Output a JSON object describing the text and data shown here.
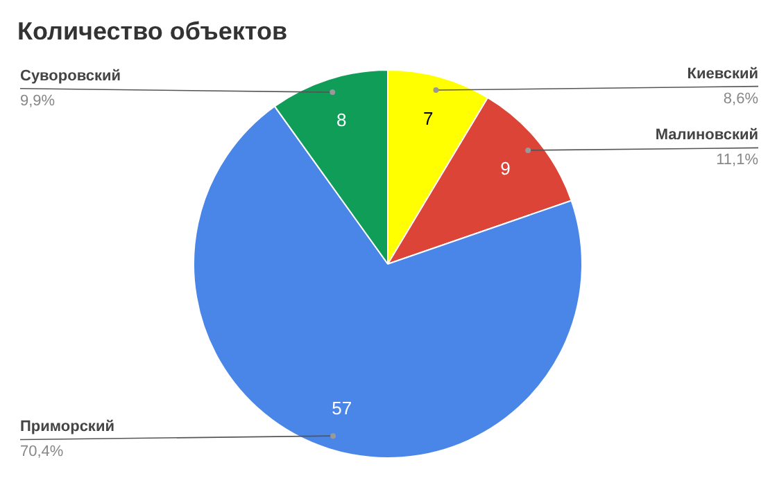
{
  "chart_data": {
    "type": "pie",
    "title": "Количество объектов",
    "categories": [
      "Киевский",
      "Малиновский",
      "Приморский",
      "Суворовский"
    ],
    "values": [
      8.6,
      11.1,
      70.4,
      9.9
    ],
    "colors": [
      "#ffff00",
      "#db4437",
      "#4a86e8",
      "#0f9d58"
    ],
    "value_labels": [
      "8,6%",
      "11,1%",
      "70,4%",
      "9,9%"
    ],
    "annotations": [
      {
        "text": "7",
        "x": "Киевский"
      },
      {
        "text": "9",
        "x": "Малиновский"
      },
      {
        "text": "57",
        "x": "Приморский"
      },
      {
        "text": "8",
        "x": "Суворовский"
      }
    ]
  }
}
